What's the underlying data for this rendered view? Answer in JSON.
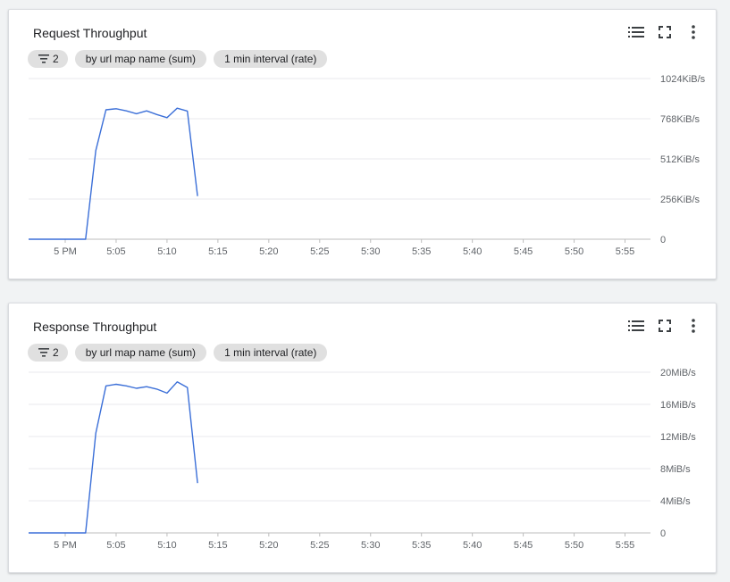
{
  "chart_data": [
    {
      "type": "line",
      "title": "Request Throughput",
      "filter_count": "2",
      "chips": [
        "by url map name (sum)",
        "1 min interval (rate)"
      ],
      "x_ticks": [
        "5 PM",
        "5:05",
        "5:10",
        "5:15",
        "5:20",
        "5:25",
        "5:30",
        "5:35",
        "5:40",
        "5:45",
        "5:50",
        "5:55"
      ],
      "y_ticks": [
        "1024KiB/s",
        "768KiB/s",
        "512KiB/s",
        "256KiB/s",
        "0"
      ],
      "ylim": [
        0,
        1024
      ],
      "xlim_minutes_after_5pm": [
        -3.6,
        57.5
      ],
      "grid": true,
      "series_color": "#3b6fd8",
      "series": [
        {
          "x": [
            "4:57",
            "4:58",
            "4:59",
            "5:00",
            "5:01",
            "5:02",
            "5:03",
            "5:04",
            "5:05",
            "5:06",
            "5:07",
            "5:08",
            "5:09",
            "5:10",
            "5:11",
            "5:12",
            "5:13"
          ],
          "values": [
            0,
            0,
            0,
            0,
            0,
            0,
            565,
            825,
            832,
            818,
            800,
            818,
            795,
            775,
            835,
            817,
            275
          ]
        }
      ]
    },
    {
      "type": "line",
      "title": "Response Throughput",
      "filter_count": "2",
      "chips": [
        "by url map name (sum)",
        "1 min interval (rate)"
      ],
      "x_ticks": [
        "5 PM",
        "5:05",
        "5:10",
        "5:15",
        "5:20",
        "5:25",
        "5:30",
        "5:35",
        "5:40",
        "5:45",
        "5:50",
        "5:55"
      ],
      "y_ticks": [
        "20MiB/s",
        "16MiB/s",
        "12MiB/s",
        "8MiB/s",
        "4MiB/s",
        "0"
      ],
      "ylim": [
        0,
        20
      ],
      "xlim_minutes_after_5pm": [
        -3.6,
        57.5
      ],
      "grid": true,
      "series_color": "#3b6fd8",
      "series": [
        {
          "x": [
            "4:57",
            "4:58",
            "4:59",
            "5:00",
            "5:01",
            "5:02",
            "5:03",
            "5:04",
            "5:05",
            "5:06",
            "5:07",
            "5:08",
            "5:09",
            "5:10",
            "5:11",
            "5:12",
            "5:13"
          ],
          "values": [
            0,
            0,
            0,
            0,
            0,
            0,
            12.4,
            18.3,
            18.5,
            18.3,
            18.0,
            18.2,
            17.9,
            17.4,
            18.8,
            18.1,
            6.2
          ]
        }
      ]
    }
  ],
  "icons": {
    "legend": "list-icon",
    "fullscreen": "fullscreen-icon",
    "more": "more-vert-icon",
    "filter": "filter-icon"
  }
}
